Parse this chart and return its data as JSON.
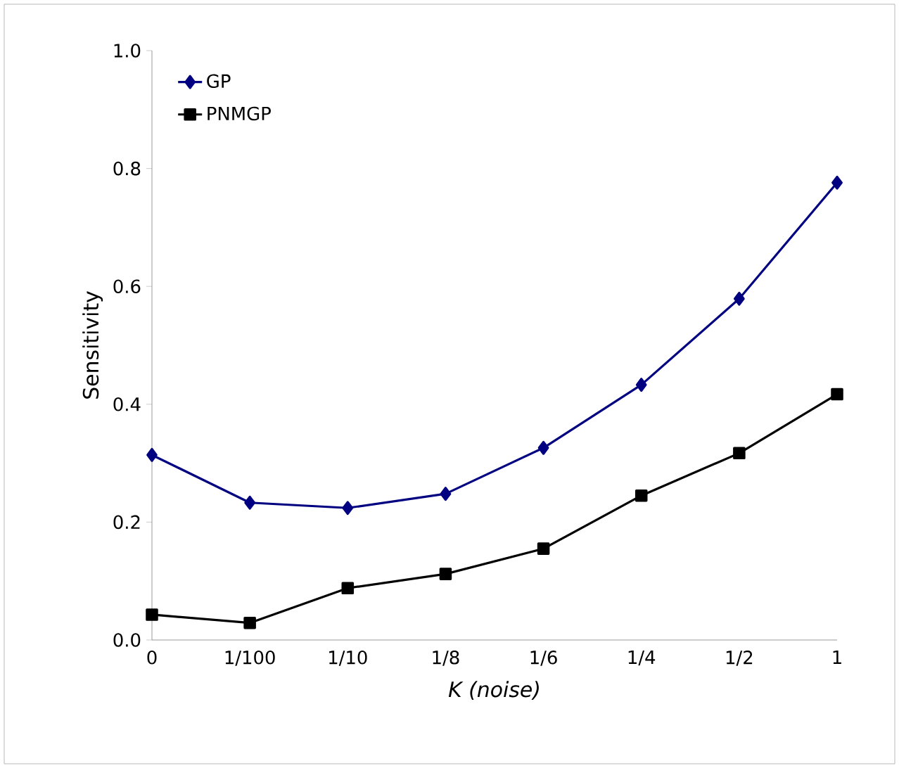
{
  "chart_data": {
    "type": "line",
    "xlabel": "*K (noise)*",
    "ylabel": "Sensitivity",
    "categories": [
      "0",
      "1/100",
      "1/10",
      "1/8",
      "1/6",
      "1/4",
      "1/2",
      "1"
    ],
    "series": [
      {
        "name": "GP",
        "color": "#000080",
        "marker": "diamond",
        "values": [
          0.314,
          0.233,
          0.224,
          0.248,
          0.326,
          0.433,
          0.579,
          0.776
        ]
      },
      {
        "name": "PNMGP",
        "color": "#000000",
        "marker": "square",
        "values": [
          0.043,
          0.029,
          0.088,
          0.112,
          0.155,
          0.245,
          0.317,
          0.417
        ]
      }
    ],
    "ylim": [
      0,
      1
    ],
    "yticks": [
      {
        "value": 0,
        "label": "0.0"
      },
      {
        "value": 0.2,
        "label": "0.2"
      },
      {
        "value": 0.4,
        "label": "0.4"
      },
      {
        "value": 0.6,
        "label": "0.6"
      },
      {
        "value": 0.8,
        "label": "0.8"
      },
      {
        "value": 1,
        "label": "1.0"
      }
    ],
    "grid": false,
    "legend": "top left",
    "line_style": "solid"
  }
}
